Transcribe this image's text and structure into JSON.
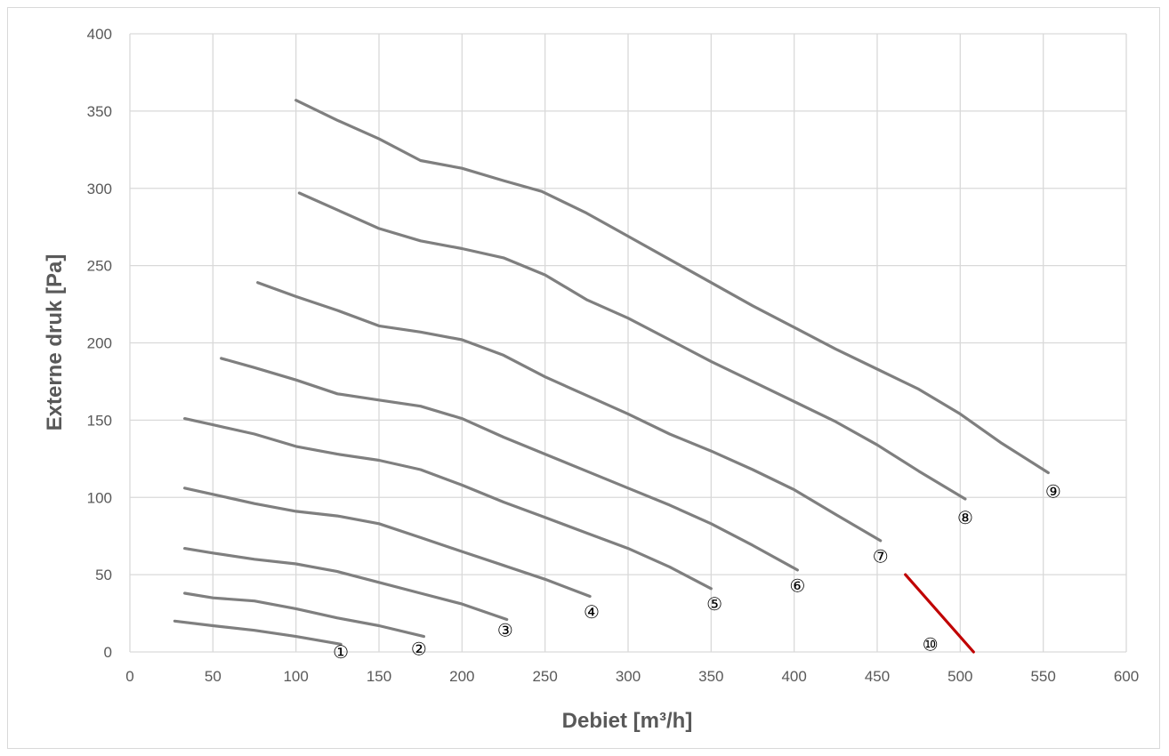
{
  "chart_data": {
    "type": "line",
    "xlabel": "Debiet [m³/h]",
    "ylabel": "Externe druk [Pa]",
    "xlim": [
      0,
      600
    ],
    "ylim": [
      0,
      400
    ],
    "x_ticks": [
      "0",
      "50",
      "100",
      "150",
      "200",
      "250",
      "300",
      "350",
      "400",
      "450",
      "500",
      "550",
      "600"
    ],
    "y_ticks": [
      "0",
      "50",
      "100",
      "150",
      "200",
      "250",
      "300",
      "350",
      "400"
    ],
    "grid": true,
    "colors": {
      "curves": "#7f7f7f",
      "limit": "#c00000",
      "grid": "#d9d9d9",
      "text": "#595959"
    },
    "series": [
      {
        "label": "①",
        "label_at": [
          127,
          0
        ],
        "color": "#7f7f7f",
        "points": [
          [
            27,
            20
          ],
          [
            50,
            17
          ],
          [
            75,
            14
          ],
          [
            100,
            10
          ],
          [
            127,
            5
          ]
        ]
      },
      {
        "label": "②",
        "label_at": [
          174,
          2
        ],
        "color": "#7f7f7f",
        "points": [
          [
            33,
            38
          ],
          [
            50,
            35
          ],
          [
            75,
            33
          ],
          [
            100,
            28
          ],
          [
            125,
            22
          ],
          [
            150,
            17
          ],
          [
            177,
            10
          ]
        ]
      },
      {
        "label": "③",
        "label_at": [
          226,
          14
        ],
        "color": "#7f7f7f",
        "points": [
          [
            33,
            67
          ],
          [
            50,
            64
          ],
          [
            75,
            60
          ],
          [
            100,
            57
          ],
          [
            125,
            52
          ],
          [
            150,
            45
          ],
          [
            175,
            38
          ],
          [
            200,
            31
          ],
          [
            227,
            21
          ]
        ]
      },
      {
        "label": "④",
        "label_at": [
          278,
          26
        ],
        "color": "#7f7f7f",
        "points": [
          [
            33,
            106
          ],
          [
            50,
            102
          ],
          [
            75,
            96
          ],
          [
            100,
            91
          ],
          [
            125,
            88
          ],
          [
            150,
            83
          ],
          [
            175,
            74
          ],
          [
            200,
            65
          ],
          [
            225,
            56
          ],
          [
            250,
            47
          ],
          [
            277,
            36
          ]
        ]
      },
      {
        "label": "⑤",
        "label_at": [
          352,
          31
        ],
        "color": "#7f7f7f",
        "points": [
          [
            33,
            151
          ],
          [
            50,
            147
          ],
          [
            75,
            141
          ],
          [
            100,
            133
          ],
          [
            125,
            128
          ],
          [
            150,
            124
          ],
          [
            175,
            118
          ],
          [
            200,
            108
          ],
          [
            225,
            97
          ],
          [
            250,
            87
          ],
          [
            275,
            77
          ],
          [
            300,
            67
          ],
          [
            325,
            55
          ],
          [
            350,
            41
          ]
        ]
      },
      {
        "label": "⑥",
        "label_at": [
          402,
          43
        ],
        "color": "#7f7f7f",
        "points": [
          [
            55,
            190
          ],
          [
            75,
            184
          ],
          [
            100,
            176
          ],
          [
            125,
            167
          ],
          [
            150,
            163
          ],
          [
            175,
            159
          ],
          [
            200,
            151
          ],
          [
            225,
            139
          ],
          [
            250,
            128
          ],
          [
            275,
            117
          ],
          [
            300,
            106
          ],
          [
            325,
            95
          ],
          [
            350,
            83
          ],
          [
            375,
            69
          ],
          [
            402,
            53
          ]
        ]
      },
      {
        "label": "⑦",
        "label_at": [
          452,
          62
        ],
        "color": "#7f7f7f",
        "points": [
          [
            77,
            239
          ],
          [
            100,
            230
          ],
          [
            125,
            221
          ],
          [
            150,
            211
          ],
          [
            175,
            207
          ],
          [
            200,
            202
          ],
          [
            225,
            192
          ],
          [
            250,
            178
          ],
          [
            275,
            166
          ],
          [
            300,
            154
          ],
          [
            325,
            141
          ],
          [
            350,
            130
          ],
          [
            375,
            118
          ],
          [
            400,
            105
          ],
          [
            425,
            89
          ],
          [
            452,
            72
          ]
        ]
      },
      {
        "label": "⑧",
        "label_at": [
          503,
          87
        ],
        "color": "#7f7f7f",
        "points": [
          [
            102,
            297
          ],
          [
            125,
            286
          ],
          [
            150,
            274
          ],
          [
            175,
            266
          ],
          [
            200,
            261
          ],
          [
            225,
            255
          ],
          [
            250,
            244
          ],
          [
            275,
            228
          ],
          [
            300,
            216
          ],
          [
            325,
            202
          ],
          [
            350,
            188
          ],
          [
            375,
            175
          ],
          [
            400,
            162
          ],
          [
            425,
            149
          ],
          [
            450,
            134
          ],
          [
            475,
            117
          ],
          [
            503,
            99
          ]
        ]
      },
      {
        "label": "⑨",
        "label_at": [
          556,
          104
        ],
        "color": "#7f7f7f",
        "points": [
          [
            100,
            357
          ],
          [
            125,
            344
          ],
          [
            150,
            332
          ],
          [
            175,
            318
          ],
          [
            200,
            313
          ],
          [
            225,
            305
          ],
          [
            248,
            298
          ],
          [
            275,
            284
          ],
          [
            300,
            269
          ],
          [
            325,
            254
          ],
          [
            350,
            239
          ],
          [
            375,
            224
          ],
          [
            400,
            210
          ],
          [
            425,
            196
          ],
          [
            450,
            183
          ],
          [
            475,
            170
          ],
          [
            500,
            154
          ],
          [
            525,
            135
          ],
          [
            553,
            116
          ]
        ]
      },
      {
        "label": "⑩",
        "label_at": [
          482,
          5
        ],
        "color": "#c00000",
        "points": [
          [
            467,
            50
          ],
          [
            508,
            0
          ]
        ]
      }
    ]
  }
}
